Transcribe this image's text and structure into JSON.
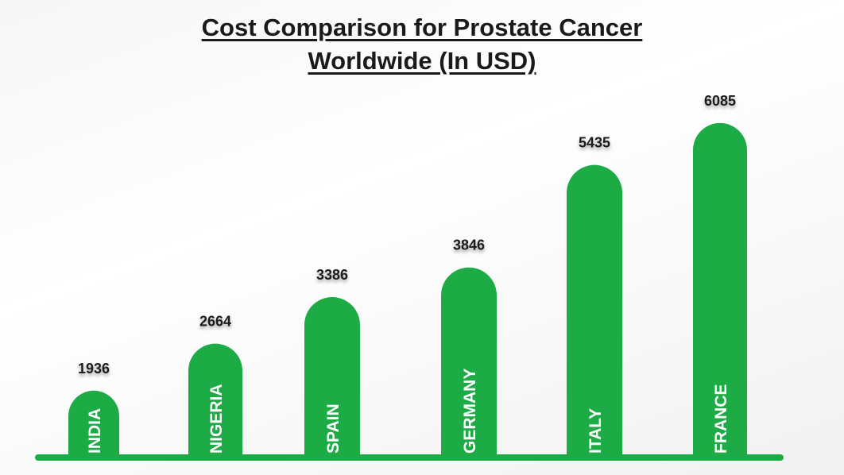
{
  "chart_data": {
    "type": "bar",
    "title_line1": "Cost Comparison for Prostate Cancer",
    "title_line2": "Worldwide (In USD)",
    "categories": [
      "INDIA",
      "NIGERIA",
      "SPAIN",
      "GERMANY",
      "ITALY",
      "FRANCE"
    ],
    "values": [
      1936,
      2664,
      3386,
      3846,
      5435,
      6085
    ],
    "xlabel": "",
    "ylabel": "",
    "grid": false,
    "legend": "none",
    "bar_color": "#1dab46",
    "label_color": "#ffffff",
    "value_label_color": "#1a1a1a"
  }
}
